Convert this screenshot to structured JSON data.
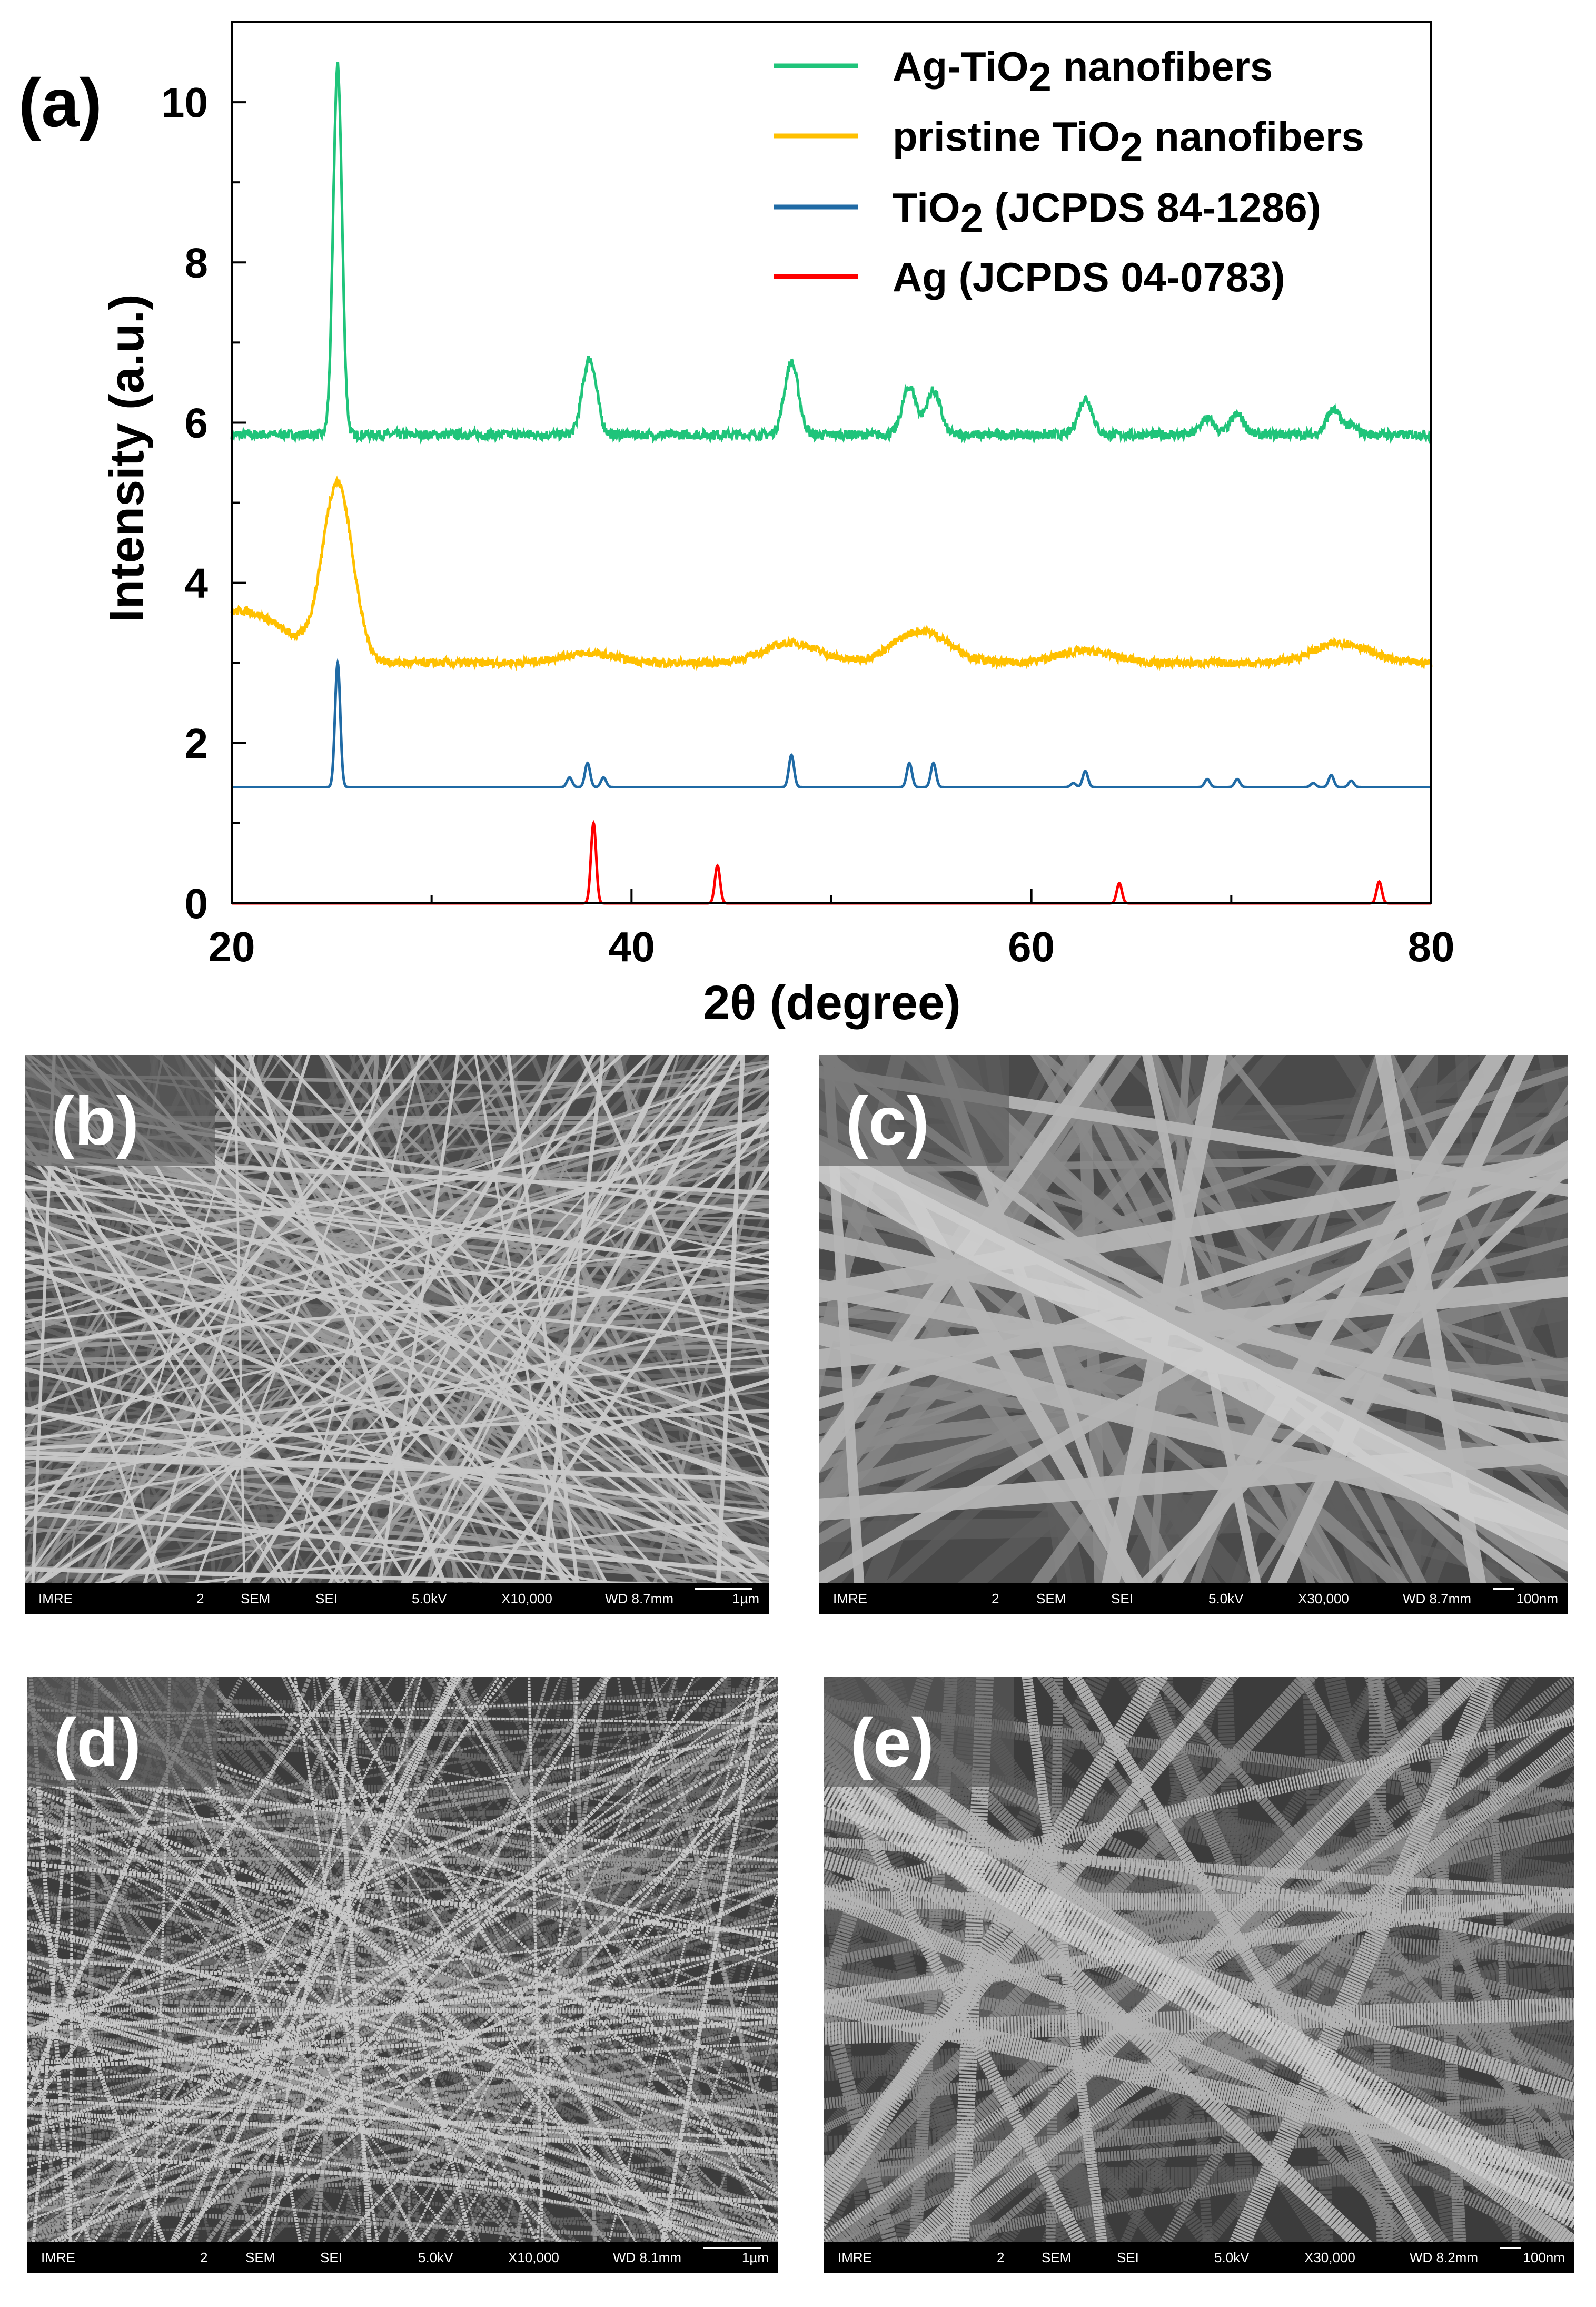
{
  "chart_data": {
    "type": "line",
    "panel_label": "(a)",
    "xlabel": "2θ (degree)",
    "ylabel": "Intensity (a.u.)",
    "xlim": [
      20,
      80
    ],
    "ylim": [
      0,
      11
    ],
    "xticks": [
      20,
      40,
      60,
      80
    ],
    "yticks": [
      0,
      2,
      4,
      6,
      8,
      10
    ],
    "grid": false,
    "legend_position": "top-right",
    "series": [
      {
        "name": "Ag-TiO2 nanofibers",
        "color": "#1fc47a",
        "baseline": 5.85,
        "peaks": [
          [
            25.3,
            4.6
          ],
          [
            37.9,
            0.95
          ],
          [
            48.0,
            0.9
          ],
          [
            53.9,
            0.6
          ],
          [
            55.1,
            0.55
          ],
          [
            62.7,
            0.45
          ],
          [
            68.8,
            0.2
          ],
          [
            70.3,
            0.25
          ],
          [
            75.1,
            0.3
          ],
          [
            76.0,
            0.1
          ]
        ]
      },
      {
        "name": "pristine TiO2 nanofibers",
        "color": "#ffc000",
        "baseline": 3.0,
        "peaks": [
          [
            25.3,
            2.2
          ],
          [
            37.8,
            0.12
          ],
          [
            48.0,
            0.25
          ],
          [
            54.5,
            0.4
          ],
          [
            62.7,
            0.15
          ],
          [
            75.5,
            0.25
          ]
        ]
      },
      {
        "name": "TiO2 (JCPDS 84-1286)",
        "color": "#1f6aa5",
        "baseline": 1.45,
        "peaks": [
          [
            25.3,
            1.55
          ],
          [
            36.9,
            0.12
          ],
          [
            37.8,
            0.3
          ],
          [
            38.6,
            0.12
          ],
          [
            48.0,
            0.4
          ],
          [
            53.9,
            0.3
          ],
          [
            55.1,
            0.3
          ],
          [
            62.1,
            0.05
          ],
          [
            62.7,
            0.2
          ],
          [
            68.8,
            0.1
          ],
          [
            70.3,
            0.1
          ],
          [
            74.1,
            0.05
          ],
          [
            75.0,
            0.15
          ],
          [
            76.0,
            0.08
          ]
        ]
      },
      {
        "name": "Ag (JCPDS 04-0783)",
        "color": "#ff0000",
        "baseline": 0.0,
        "peaks": [
          [
            38.1,
            1.0
          ],
          [
            44.3,
            0.47
          ],
          [
            64.4,
            0.25
          ],
          [
            77.4,
            0.27
          ]
        ]
      }
    ],
    "legend_labels": [
      {
        "pre": "Ag-TiO",
        "sub": "2",
        "post": " nanofibers"
      },
      {
        "pre": "pristine TiO",
        "sub": "2",
        "post": " nanofibers"
      },
      {
        "pre": "TiO",
        "sub": "2",
        "post": " (JCPDS 84-1286)"
      },
      {
        "pre": "Ag (JCPDS 04-0783)",
        "sub": "",
        "post": ""
      }
    ]
  },
  "sem_panels": [
    {
      "label": "(b)",
      "bar": {
        "inst": "IMRE",
        "num": "2",
        "mode": "SEM",
        "det": "SEI",
        "kv": "5.0kV",
        "mag": "X10,000",
        "wd": "WD 8.7mm",
        "scale": "1µm"
      },
      "style": "smooth-fine"
    },
    {
      "label": "(c)",
      "bar": {
        "inst": "IMRE",
        "num": "2",
        "mode": "SEM",
        "det": "SEI",
        "kv": "5.0kV",
        "mag": "X30,000",
        "wd": "WD 8.7mm",
        "scale": "100nm"
      },
      "style": "smooth-thick"
    },
    {
      "label": "(d)",
      "bar": {
        "inst": "IMRE",
        "num": "2",
        "mode": "SEM",
        "det": "SEI",
        "kv": "5.0kV",
        "mag": "X10,000",
        "wd": "WD 8.1mm",
        "scale": "1µm"
      },
      "style": "rough-fine"
    },
    {
      "label": "(e)",
      "bar": {
        "inst": "IMRE",
        "num": "2",
        "mode": "SEM",
        "det": "SEI",
        "kv": "5.0kV",
        "mag": "X30,000",
        "wd": "WD 8.2mm",
        "scale": "100nm"
      },
      "style": "rough-thick"
    }
  ]
}
